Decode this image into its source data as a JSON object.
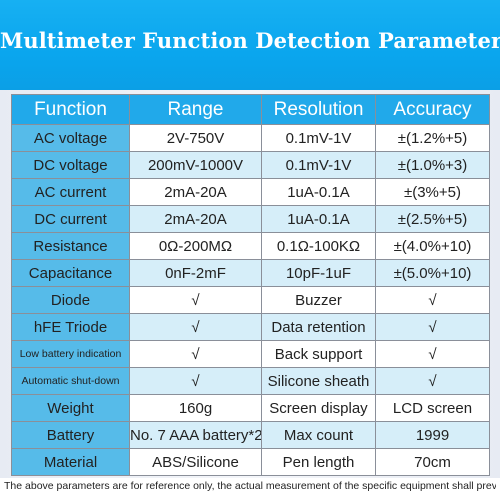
{
  "banner": {
    "title": "Multimeter Function Detection Parameters"
  },
  "table": {
    "headers": [
      "Function",
      "Range",
      "Resolution",
      "Accuracy"
    ],
    "rows": [
      {
        "function": "AC voltage",
        "range": "2V-750V",
        "resolution": "0.1mV-1V",
        "accuracy": "±(1.2%+5)"
      },
      {
        "function": "DC voltage",
        "range": "200mV-1000V",
        "resolution": "0.1mV-1V",
        "accuracy": "±(1.0%+3)"
      },
      {
        "function": "AC current",
        "range": "2mA-20A",
        "resolution": "1uA-0.1A",
        "accuracy": "±(3%+5)"
      },
      {
        "function": "DC current",
        "range": "2mA-20A",
        "resolution": "1uA-0.1A",
        "accuracy": "±(2.5%+5)"
      },
      {
        "function": "Resistance",
        "range": "0Ω-200MΩ",
        "resolution": "0.1Ω-100KΩ",
        "accuracy": "±(4.0%+10)"
      },
      {
        "function": "Capacitance",
        "range": "0nF-2mF",
        "resolution": "10pF-1uF",
        "accuracy": "±(5.0%+10)"
      }
    ],
    "features": [
      {
        "left_label": "Diode",
        "left_value": "√",
        "right_label": "Buzzer",
        "right_value": "√"
      },
      {
        "left_label": "hFE Triode",
        "left_value": "√",
        "right_label": "Data retention",
        "right_value": "√"
      },
      {
        "left_label": "Low battery indication",
        "left_value": "√",
        "right_label": "Back support",
        "right_value": "√"
      },
      {
        "left_label": "Automatic shut-down",
        "left_value": "√",
        "right_label": "Silicone sheath",
        "right_value": "√"
      },
      {
        "left_label": "Weight",
        "left_value": "160g",
        "right_label": "Screen display",
        "right_value": "LCD screen"
      },
      {
        "left_label": "Battery",
        "left_value": "No. 7 AAA battery*2",
        "right_label": "Max count",
        "right_value": "1999"
      },
      {
        "left_label": "Material",
        "left_value": "ABS/Silicone",
        "right_label": "Pen length",
        "right_value": "70cm"
      }
    ]
  },
  "footnote": "The above parameters are for reference only, the actual measurement of the specific equipment shall prevail!",
  "colors": {
    "banner": "#0aa6ee",
    "header": "#21a9ea",
    "label": "#56bbe9",
    "tint": "#d6eef9"
  },
  "icons": {
    "low_battery": "battery-icon"
  }
}
